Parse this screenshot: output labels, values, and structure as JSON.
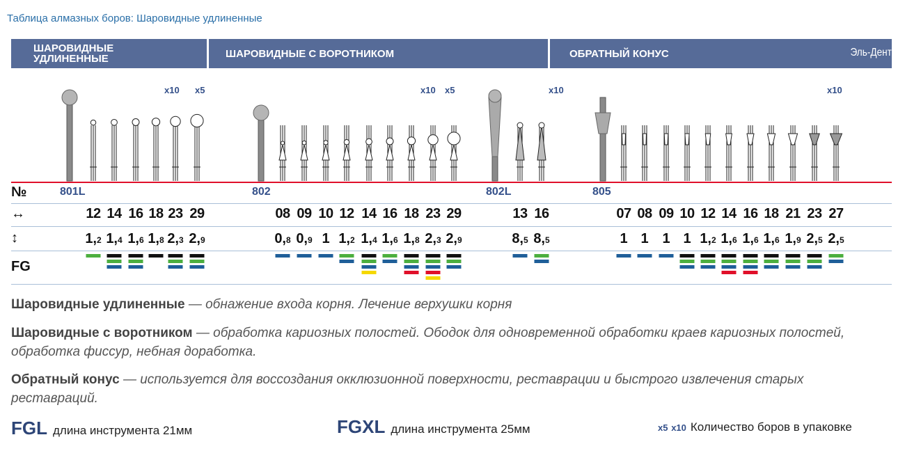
{
  "title": "Таблица алмазных боров: Шаровидные удлиненные",
  "header": {
    "sections": [
      "ШАРОВИДНЫЕ УДЛИНЕННЫЕ",
      "ШАРОВИДНЫЕ С ВОРОТНИКОМ",
      "ОБРАТНЫЙ КОНУС"
    ],
    "section0_line1": "ШАРОВИДНЫЕ",
    "section0_line2": "УДЛИНЕННЫЕ",
    "brand": "Эль-Дент"
  },
  "row_labels": {
    "number": "№",
    "diameter": "↔",
    "depth": "↕",
    "fg": "FG"
  },
  "colors": {
    "black": "#111111",
    "green": "#4caf3f",
    "blue": "#1f5f99",
    "red": "#e0102a",
    "yellow": "#f5d800",
    "header": "#566b98",
    "red_line": "#e0102a"
  },
  "groups": [
    {
      "code": "801L",
      "shape": "ball-long",
      "pack": [
        "x10",
        "x5"
      ],
      "sizes": [
        "12",
        "14",
        "16",
        "18",
        "23",
        "29"
      ],
      "depths": [
        "1,2",
        "1,4",
        "1,6",
        "1,8",
        "2,3",
        "2,9"
      ],
      "fg": [
        [
          "green"
        ],
        [
          "black",
          "green",
          "blue"
        ],
        [
          "black",
          "green",
          "blue"
        ],
        [
          "black"
        ],
        [
          "black",
          "green",
          "blue"
        ],
        [
          "black",
          "green",
          "blue"
        ]
      ]
    },
    {
      "code": "802",
      "shape": "ball-collar",
      "pack": [
        "x10",
        "x5"
      ],
      "sizes": [
        "08",
        "09",
        "10",
        "12",
        "14",
        "16",
        "18",
        "23",
        "29"
      ],
      "depths": [
        "0,8",
        "0,9",
        "1",
        "1,2",
        "1,4",
        "1,6",
        "1,8",
        "2,3",
        "2,9"
      ],
      "fg": [
        [
          "blue"
        ],
        [
          "blue"
        ],
        [
          "blue"
        ],
        [
          "green",
          "blue"
        ],
        [
          "black",
          "green",
          "blue",
          "yellow"
        ],
        [
          "green",
          "blue"
        ],
        [
          "black",
          "green",
          "blue",
          "red"
        ],
        [
          "black",
          "green",
          "blue",
          "red",
          "yellow"
        ],
        [
          "black",
          "green",
          "blue"
        ]
      ]
    },
    {
      "code": "802L",
      "shape": "ball-cone",
      "pack": [
        "x10"
      ],
      "sizes": [
        "13",
        "16"
      ],
      "depths": [
        "8,5",
        "8,5"
      ],
      "fg": [
        [
          "blue"
        ],
        [
          "green",
          "blue"
        ]
      ]
    },
    {
      "code": "805",
      "shape": "inverted-cone",
      "pack": [
        "x10"
      ],
      "sizes": [
        "07",
        "08",
        "09",
        "10",
        "12",
        "14",
        "16",
        "18",
        "21",
        "23",
        "27"
      ],
      "depths": [
        "1",
        "1",
        "1",
        "1",
        "1,2",
        "1,6",
        "1,6",
        "1,6",
        "1,9",
        "2,5",
        "2,5"
      ],
      "fg": [
        [
          "blue"
        ],
        [
          "blue"
        ],
        [
          "blue"
        ],
        [
          "black",
          "green",
          "blue"
        ],
        [
          "black",
          "green",
          "blue"
        ],
        [
          "black",
          "green",
          "blue",
          "red"
        ],
        [
          "black",
          "green",
          "blue",
          "red"
        ],
        [
          "black",
          "green",
          "blue"
        ],
        [
          "black",
          "green",
          "blue"
        ],
        [
          "black",
          "green",
          "blue"
        ],
        [
          "green",
          "blue"
        ]
      ]
    }
  ],
  "descriptions": [
    {
      "term": "Шаровидные удлиненные",
      "text": "— обнажение входа корня. Лечение верхушки корня"
    },
    {
      "term": "Шаровидные с воротником",
      "text": "— обработка кариозных полостей. Ободок для одновременной обработки краев кариозных полостей, обработка фиссур, небная доработка."
    },
    {
      "term": "Обратный конус",
      "text": "— используется для воссоздания окклюзионной поверхности, реставрации и быстрого извлечения старых реставраций."
    }
  ],
  "footer": {
    "fgl_label": "FGL",
    "fgl_text": "длина инструмента 21мм",
    "fgxl_label": "FGXL",
    "fgxl_text": "длина инструмента 25мм",
    "pack5": "x5",
    "pack10": "x10",
    "pack_text": "Количество боров в упаковке"
  }
}
